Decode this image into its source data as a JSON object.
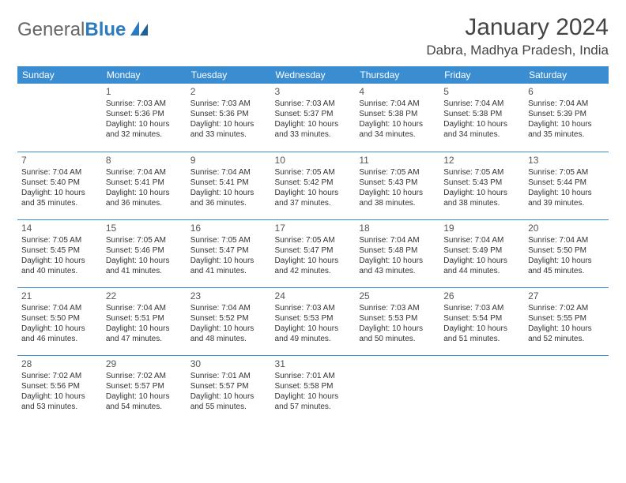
{
  "brand": {
    "name_a": "General",
    "name_b": "Blue"
  },
  "title": "January 2024",
  "location": "Dabra, Madhya Pradesh, India",
  "colors": {
    "header_bg": "#3a8dd0",
    "header_text": "#ffffff",
    "rule": "#3a8dd0",
    "body_text": "#333333",
    "title_text": "#444444",
    "logo_gray": "#666666",
    "logo_blue": "#2b7bbf",
    "background": "#ffffff"
  },
  "daynames": [
    "Sunday",
    "Monday",
    "Tuesday",
    "Wednesday",
    "Thursday",
    "Friday",
    "Saturday"
  ],
  "weeks": [
    [
      null,
      {
        "n": "1",
        "sr": "7:03 AM",
        "ss": "5:36 PM",
        "dl": "10 hours and 32 minutes."
      },
      {
        "n": "2",
        "sr": "7:03 AM",
        "ss": "5:36 PM",
        "dl": "10 hours and 33 minutes."
      },
      {
        "n": "3",
        "sr": "7:03 AM",
        "ss": "5:37 PM",
        "dl": "10 hours and 33 minutes."
      },
      {
        "n": "4",
        "sr": "7:04 AM",
        "ss": "5:38 PM",
        "dl": "10 hours and 34 minutes."
      },
      {
        "n": "5",
        "sr": "7:04 AM",
        "ss": "5:38 PM",
        "dl": "10 hours and 34 minutes."
      },
      {
        "n": "6",
        "sr": "7:04 AM",
        "ss": "5:39 PM",
        "dl": "10 hours and 35 minutes."
      }
    ],
    [
      {
        "n": "7",
        "sr": "7:04 AM",
        "ss": "5:40 PM",
        "dl": "10 hours and 35 minutes."
      },
      {
        "n": "8",
        "sr": "7:04 AM",
        "ss": "5:41 PM",
        "dl": "10 hours and 36 minutes."
      },
      {
        "n": "9",
        "sr": "7:04 AM",
        "ss": "5:41 PM",
        "dl": "10 hours and 36 minutes."
      },
      {
        "n": "10",
        "sr": "7:05 AM",
        "ss": "5:42 PM",
        "dl": "10 hours and 37 minutes."
      },
      {
        "n": "11",
        "sr": "7:05 AM",
        "ss": "5:43 PM",
        "dl": "10 hours and 38 minutes."
      },
      {
        "n": "12",
        "sr": "7:05 AM",
        "ss": "5:43 PM",
        "dl": "10 hours and 38 minutes."
      },
      {
        "n": "13",
        "sr": "7:05 AM",
        "ss": "5:44 PM",
        "dl": "10 hours and 39 minutes."
      }
    ],
    [
      {
        "n": "14",
        "sr": "7:05 AM",
        "ss": "5:45 PM",
        "dl": "10 hours and 40 minutes."
      },
      {
        "n": "15",
        "sr": "7:05 AM",
        "ss": "5:46 PM",
        "dl": "10 hours and 41 minutes."
      },
      {
        "n": "16",
        "sr": "7:05 AM",
        "ss": "5:47 PM",
        "dl": "10 hours and 41 minutes."
      },
      {
        "n": "17",
        "sr": "7:05 AM",
        "ss": "5:47 PM",
        "dl": "10 hours and 42 minutes."
      },
      {
        "n": "18",
        "sr": "7:04 AM",
        "ss": "5:48 PM",
        "dl": "10 hours and 43 minutes."
      },
      {
        "n": "19",
        "sr": "7:04 AM",
        "ss": "5:49 PM",
        "dl": "10 hours and 44 minutes."
      },
      {
        "n": "20",
        "sr": "7:04 AM",
        "ss": "5:50 PM",
        "dl": "10 hours and 45 minutes."
      }
    ],
    [
      {
        "n": "21",
        "sr": "7:04 AM",
        "ss": "5:50 PM",
        "dl": "10 hours and 46 minutes."
      },
      {
        "n": "22",
        "sr": "7:04 AM",
        "ss": "5:51 PM",
        "dl": "10 hours and 47 minutes."
      },
      {
        "n": "23",
        "sr": "7:04 AM",
        "ss": "5:52 PM",
        "dl": "10 hours and 48 minutes."
      },
      {
        "n": "24",
        "sr": "7:03 AM",
        "ss": "5:53 PM",
        "dl": "10 hours and 49 minutes."
      },
      {
        "n": "25",
        "sr": "7:03 AM",
        "ss": "5:53 PM",
        "dl": "10 hours and 50 minutes."
      },
      {
        "n": "26",
        "sr": "7:03 AM",
        "ss": "5:54 PM",
        "dl": "10 hours and 51 minutes."
      },
      {
        "n": "27",
        "sr": "7:02 AM",
        "ss": "5:55 PM",
        "dl": "10 hours and 52 minutes."
      }
    ],
    [
      {
        "n": "28",
        "sr": "7:02 AM",
        "ss": "5:56 PM",
        "dl": "10 hours and 53 minutes."
      },
      {
        "n": "29",
        "sr": "7:02 AM",
        "ss": "5:57 PM",
        "dl": "10 hours and 54 minutes."
      },
      {
        "n": "30",
        "sr": "7:01 AM",
        "ss": "5:57 PM",
        "dl": "10 hours and 55 minutes."
      },
      {
        "n": "31",
        "sr": "7:01 AM",
        "ss": "5:58 PM",
        "dl": "10 hours and 57 minutes."
      },
      null,
      null,
      null
    ]
  ],
  "labels": {
    "sunrise": "Sunrise:",
    "sunset": "Sunset:",
    "daylight": "Daylight:"
  }
}
